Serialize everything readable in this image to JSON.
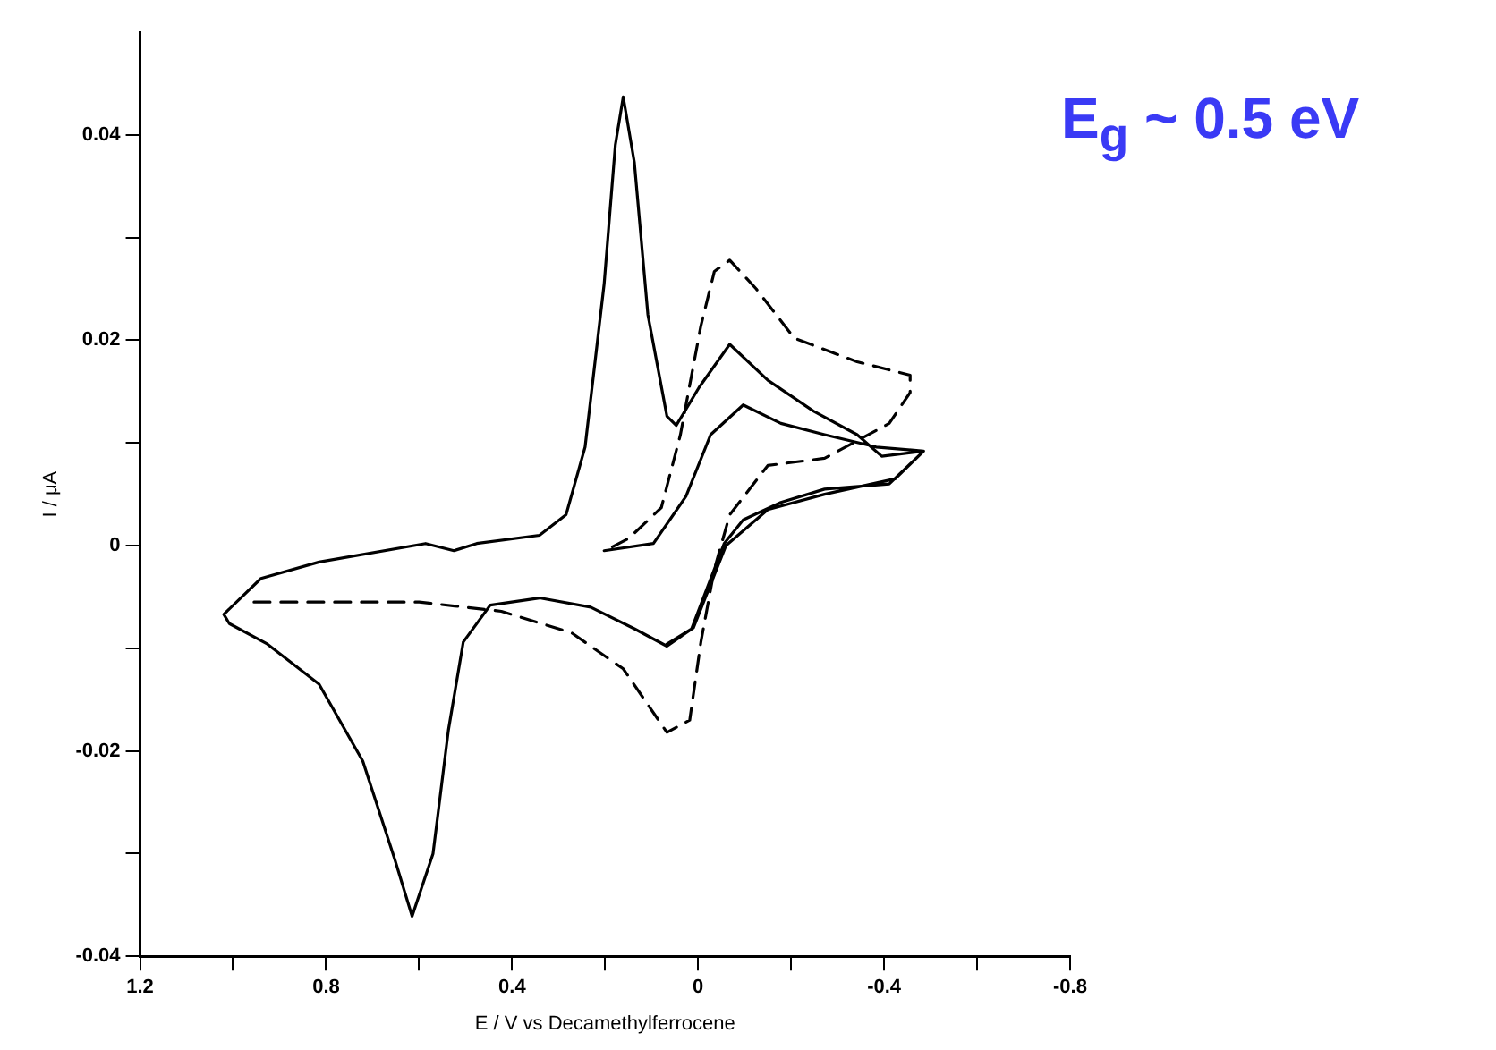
{
  "chart_data": {
    "type": "line",
    "xlabel": "E / V vs Decamethylferrocene",
    "ylabel": "I / μA",
    "annotations": [
      "E$_{g}$ ~ 0.5 eV"
    ],
    "xlim": [
      1.2,
      -0.8
    ],
    "xticks": [
      1.2,
      {
        "value": 1.0,
        "label": null
      },
      0.8,
      {
        "value": 0.6,
        "label": null
      },
      0.4,
      {
        "value": 0.2,
        "label": null
      },
      0,
      {
        "value": -0.2,
        "label": null
      },
      -0.4,
      {
        "value": -0.6,
        "label": null
      },
      -0.8
    ],
    "ylim": [
      -0.04,
      0.05
    ],
    "yticks": [
      -0.04,
      {
        "value": -0.03,
        "label": null
      },
      -0.02,
      {
        "value": -0.01,
        "label": null
      },
      0,
      {
        "value": 0.01,
        "label": null
      },
      0.02,
      {
        "value": 0.03,
        "label": null
      },
      0.04
    ],
    "grid": false,
    "legend": false,
    "marker": "none",
    "series": [
      {
        "color": "#000000",
        "line_style": "dashed",
        "x": [
          0.955,
          0.8,
          0.6,
          0.423,
          0.272,
          0.161,
          0.067,
          0.018,
          -0.006,
          -0.035,
          -0.068,
          -0.15,
          -0.272,
          -0.411,
          -0.456,
          -0.456,
          -0.342,
          -0.207,
          -0.125,
          -0.068,
          -0.035,
          -0.006,
          0.014,
          0.038,
          0.079,
          0.149,
          0.2
        ],
        "values": [
          -0.0055,
          -0.0055,
          -0.0055,
          -0.0064,
          -0.0085,
          -0.012,
          -0.0182,
          -0.017,
          -0.0094,
          -0.0023,
          0.003,
          0.0078,
          0.0085,
          0.0119,
          0.0149,
          0.0166,
          0.0179,
          0.0202,
          0.025,
          0.0278,
          0.0267,
          0.0214,
          0.0166,
          0.0108,
          0.0037,
          0.0007,
          -0.0005
        ]
      },
      {
        "color": "#000000",
        "line_style": "solid",
        "x": [
          0.202,
          0.096,
          0.026,
          -0.027,
          -0.097,
          -0.178,
          -0.272,
          -0.383,
          -0.485,
          -0.424,
          -0.272,
          -0.15,
          -0.06,
          0.01,
          0.067,
          0.137,
          0.231,
          0.341,
          0.447,
          0.505,
          0.537,
          0.57,
          0.615,
          0.652,
          0.721,
          0.815,
          0.926,
          1.008,
          1.02,
          0.94,
          0.815,
          0.586,
          0.525,
          0.476,
          0.341,
          0.284,
          0.243,
          0.202,
          0.178,
          0.161,
          0.137,
          0.108,
          0.067,
          0.047,
          -0.002,
          -0.068,
          -0.15,
          -0.248,
          -0.342,
          -0.395,
          -0.485,
          -0.411,
          -0.272,
          -0.178,
          -0.097,
          -0.056,
          -0.035,
          0.014,
          0.067
        ],
        "values": [
          -0.0005,
          0.0002,
          0.0048,
          0.0108,
          0.0137,
          0.0119,
          0.0108,
          0.0096,
          0.0092,
          0.0065,
          0.005,
          0.0035,
          0.0,
          -0.008,
          -0.0098,
          -0.0081,
          -0.006,
          -0.0051,
          -0.0058,
          -0.0094,
          -0.018,
          -0.03,
          -0.0361,
          -0.0306,
          -0.021,
          -0.0135,
          -0.0096,
          -0.0076,
          -0.0067,
          -0.0032,
          -0.0016,
          0.0002,
          -0.0005,
          0.0002,
          0.001,
          0.003,
          0.0096,
          0.0255,
          0.039,
          0.0437,
          0.0373,
          0.0225,
          0.0126,
          0.0117,
          0.0154,
          0.0196,
          0.0161,
          0.0131,
          0.0108,
          0.0087,
          0.0092,
          0.006,
          0.0055,
          0.0042,
          0.0025,
          0.0002,
          -0.0023,
          -0.0081,
          -0.0096
        ]
      }
    ]
  }
}
